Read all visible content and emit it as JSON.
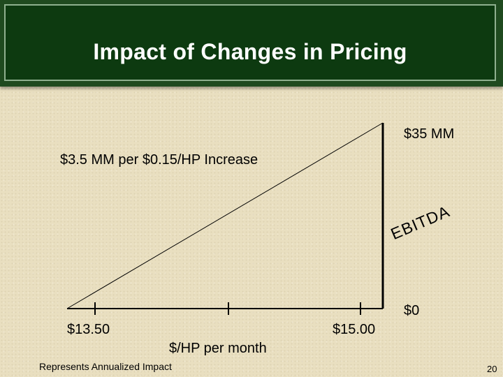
{
  "slide": {
    "title": "Impact of Changes in Pricing",
    "footnote": "Represents Annualized Impact",
    "page_number": "20"
  },
  "diagram": {
    "top_value_label": "$35 MM",
    "bottom_value_label": "$0",
    "slope_label": "$3.5 MM per $0.15/HP Increase",
    "vertical_axis_label": "EBITDA",
    "x_start_label": "$13.50",
    "x_end_label": "$15.00",
    "x_axis_label": "$/HP per month"
  }
}
